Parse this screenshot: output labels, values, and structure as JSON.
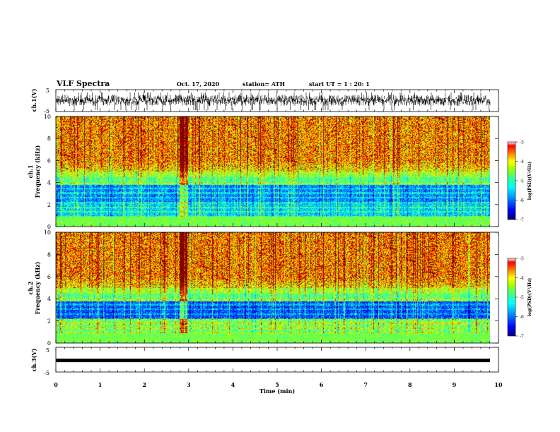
{
  "header": {
    "title": "VLF Spectra",
    "date": "Oct. 17, 2020",
    "station": "station= ATH",
    "start": "start  UT =   1 : 20: 1"
  },
  "chart_data": [
    {
      "type": "line",
      "panel": "ch1-waveform",
      "ylabel": "ch.1(V)",
      "yticks": [
        "5",
        "-5"
      ],
      "ylim": [
        -5,
        5
      ],
      "xlim": [
        0,
        10
      ],
      "color": "#000000"
    },
    {
      "type": "heatmap",
      "panel": "ch1-spectrogram",
      "ylabel": "ch.1\nFrequency (kHz)",
      "ylim": [
        0,
        10
      ],
      "yticks": [
        "0",
        "2",
        "4",
        "6",
        "8",
        "10"
      ],
      "xlim": [
        0,
        10
      ],
      "colorbar": {
        "label": "log(PSD)(V²/Hz)",
        "ticks": [
          "-3",
          "-4",
          "-5",
          "-6",
          "-7"
        ],
        "range": [
          -7,
          -3
        ]
      }
    },
    {
      "type": "heatmap",
      "panel": "ch2-spectrogram",
      "ylabel": "ch.2\nFrequency (kHz)",
      "ylim": [
        0,
        10
      ],
      "yticks": [
        "0",
        "2",
        "4",
        "6",
        "8",
        "10"
      ],
      "xlim": [
        0,
        10
      ],
      "colorbar": {
        "label": "log(PSD)(V²/Hz)",
        "ticks": [
          "-3",
          "-4",
          "-5",
          "-6",
          "-7"
        ],
        "range": [
          -7,
          -3
        ]
      }
    },
    {
      "type": "line",
      "panel": "ch3-waveform",
      "ylabel": "ch.3(V)",
      "yticks": [
        "5",
        "-5"
      ],
      "ylim": [
        -5,
        5
      ],
      "xlim": [
        0,
        10
      ],
      "value": -0.3,
      "color": "#000000"
    }
  ],
  "xaxis": {
    "label": "Time (min)",
    "ticks": [
      "0",
      "1",
      "2",
      "3",
      "4",
      "5",
      "6",
      "7",
      "8",
      "9",
      "10"
    ]
  },
  "colors": {
    "spectrum": [
      "#00007f",
      "#0000ff",
      "#00a0ff",
      "#00ffff",
      "#40ff80",
      "#a0ff00",
      "#ffff00",
      "#ff8000",
      "#ff0000",
      "#7f0000"
    ]
  }
}
